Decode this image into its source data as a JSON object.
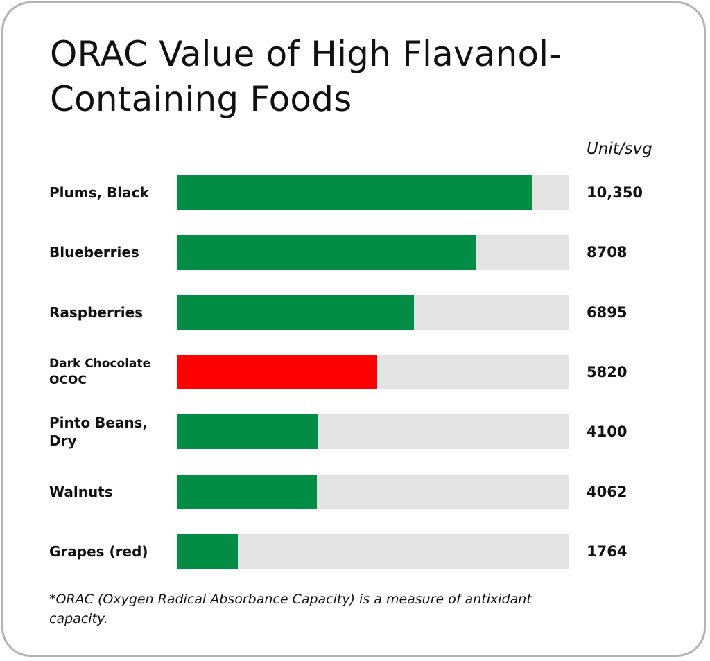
{
  "chart_data": {
    "type": "bar",
    "orientation": "horizontal",
    "title": "ORAC Value of High Flavanol-Containing Foods",
    "unit_label": "Unit/svg",
    "categories": [
      "Plums, Black",
      "Blueberries",
      "Raspberries",
      "Dark Chocolate OCOC",
      "Pinto Beans, Dry",
      "Walnuts",
      "Grapes (red)"
    ],
    "values": [
      10350,
      8708,
      6895,
      5820,
      4100,
      4062,
      1764
    ],
    "value_labels": [
      "10,350",
      "8708",
      "6895",
      "5820",
      "4100",
      "4062",
      "1764"
    ],
    "xlim": [
      0,
      11400
    ],
    "bar_colors": [
      "#038c45",
      "#038c45",
      "#038c45",
      "#ff0000",
      "#038c45",
      "#038c45",
      "#038c45"
    ],
    "track_color": "#e3e3e3",
    "footnote": "*ORAC (Oxygen Radical Absorbance Capacity) is a measure of antixidant capacity."
  }
}
